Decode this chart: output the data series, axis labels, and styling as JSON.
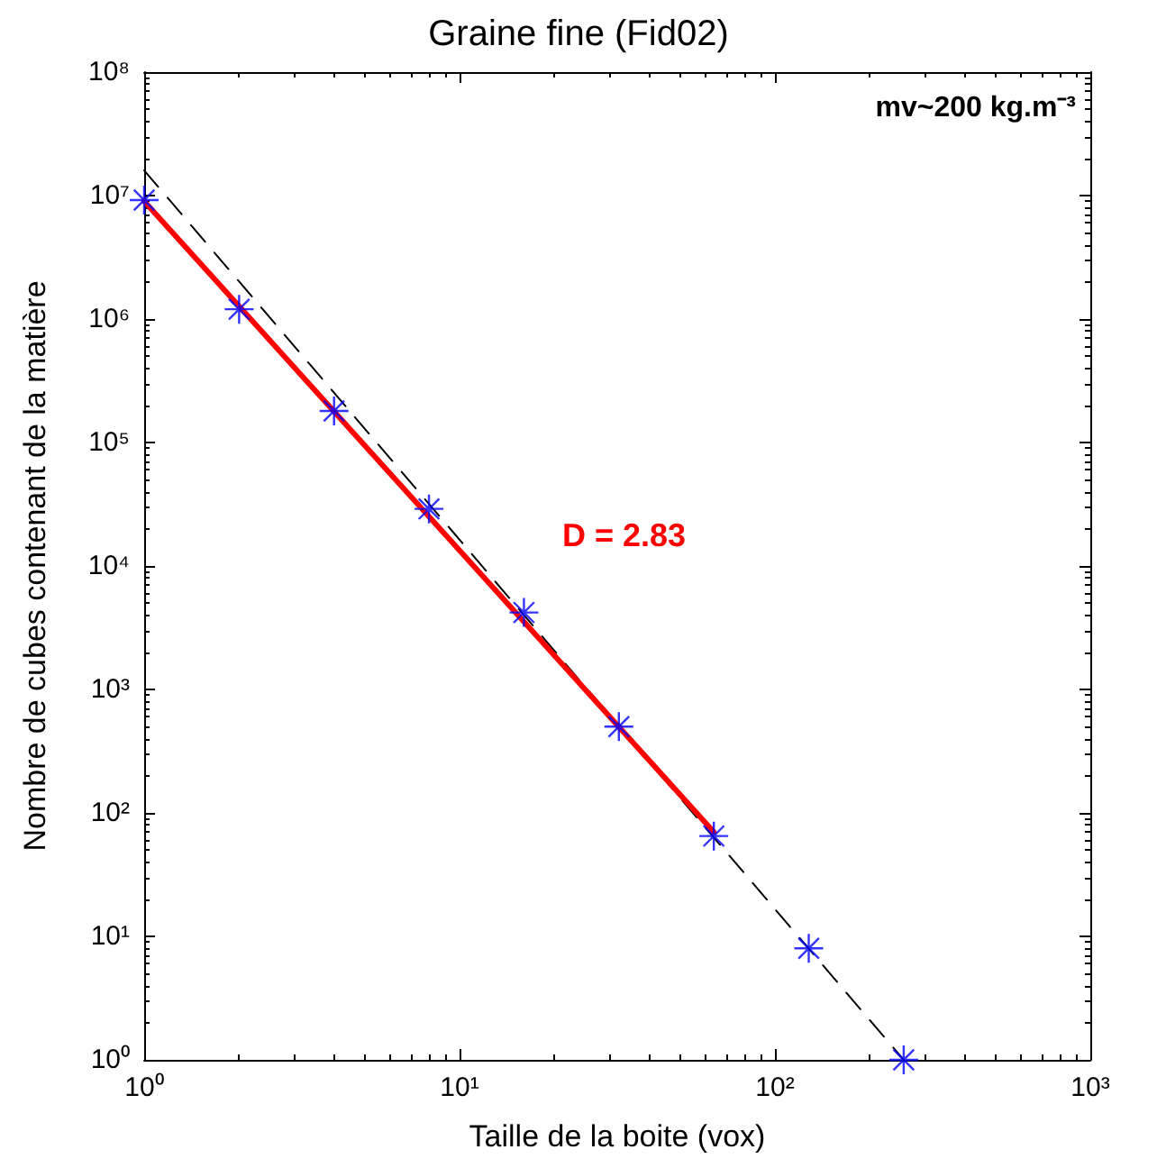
{
  "chart_data": {
    "type": "scatter",
    "title": "Graine fine (Fid02)",
    "xlabel": "Taille de la boite (vox)",
    "ylabel": "Nombre de cubes contenant de la matière",
    "log": "xy",
    "grid": false,
    "xlim": [
      1,
      1000
    ],
    "xticks": [
      {
        "value": 1,
        "label": "10⁰"
      },
      {
        "value": 10,
        "label": "10¹"
      },
      {
        "value": 100,
        "label": "10²"
      },
      {
        "value": 1000,
        "label": "10³"
      }
    ],
    "ylim": [
      1,
      100000000
    ],
    "yticks": [
      {
        "value": 1,
        "label": "10⁰"
      },
      {
        "value": 10,
        "label": "10¹"
      },
      {
        "value": 100,
        "label": "10²"
      },
      {
        "value": 1000,
        "label": "10³"
      },
      {
        "value": 10000,
        "label": "10⁴"
      },
      {
        "value": 100000,
        "label": "10⁵"
      },
      {
        "value": 1000000,
        "label": "10⁶"
      },
      {
        "value": 10000000,
        "label": "10⁷"
      },
      {
        "value": 100000000,
        "label": "10⁸"
      }
    ],
    "series": [
      {
        "type": "line",
        "color": "#000000",
        "line_style": "dashed",
        "marker": "none",
        "x": [
          1,
          256
        ],
        "values": [
          16000000,
          1
        ]
      },
      {
        "type": "line",
        "color": "#ff0000",
        "line_style": "solid",
        "marker": "none",
        "x": [
          1,
          64
        ],
        "values": [
          9000000,
          70
        ]
      },
      {
        "color": "#0000ff",
        "marker": "cross",
        "x": [
          1,
          2,
          4,
          8,
          16,
          32,
          64,
          128,
          256
        ],
        "values": [
          9200000,
          1200000,
          180000,
          29000,
          4200,
          500,
          65,
          8,
          1
        ]
      }
    ],
    "annotations": [
      "D = 2.83",
      "mv~200 kg.m⁻³"
    ]
  }
}
